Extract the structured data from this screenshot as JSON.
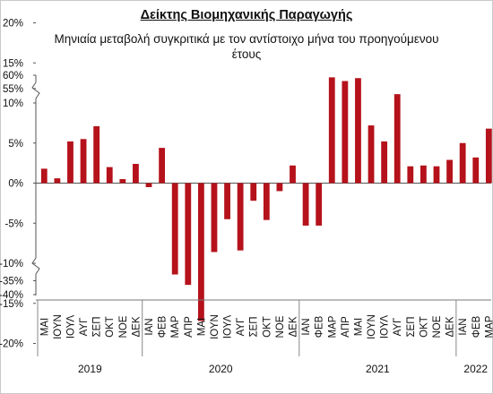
{
  "chart_data": {
    "type": "bar",
    "title": "Δείκτης Βιομηχανικής Παραγωγής",
    "subtitle": "Μηνιαία μεταβολή συγκριτικά με τον αντίστοιχο μήνα του προηγούμενου έτους",
    "ylim": [
      -40,
      60
    ],
    "y_break_regions": [
      [
        -35,
        -20
      ],
      [
        20,
        55
      ]
    ],
    "yticks": [
      "-40%",
      "-35%",
      "-20%",
      "-15%",
      "-10%",
      "-5%",
      "0%",
      "5%",
      "10%",
      "15%",
      "20%",
      "55%",
      "60%"
    ],
    "bar_color": "#b5121b",
    "categories": [
      "ΜΑΙ",
      "ΙΟΥΝ",
      "ΙΟΥΛ",
      "ΑΥΓ",
      "ΣΕΠ",
      "ΟΚΤ",
      "ΝΟΕ",
      "ΔΕΚ",
      "ΙΑΝ",
      "ΦΕΒ",
      "ΜΑΡ",
      "ΑΠΡ",
      "ΜΑΙ",
      "ΙΟΥΝ",
      "ΙΟΥΛ",
      "ΑΥΓ",
      "ΣΕΠ",
      "ΟΚΤ",
      "ΝΟΕ",
      "ΔΕΚ",
      "ΙΑΝ",
      "ΦΕΒ",
      "ΜΑΡ",
      "ΑΠΡ",
      "ΜΑΙ",
      "ΙΟΥΝ",
      "ΙΟΥΛ",
      "ΑΥΓ",
      "ΣΕΠ",
      "ΟΚΤ",
      "ΝΟΕ",
      "ΔΕΚ",
      "ΙΑΝ",
      "ΦΕΒ",
      "ΜΑΡ"
    ],
    "values": [
      1.8,
      0.6,
      5.2,
      5.5,
      7.1,
      2.0,
      0.5,
      2.4,
      -0.5,
      4.4,
      -11.4,
      -36.5,
      -17.2,
      -8.6,
      -4.5,
      -8.4,
      -2.2,
      -4.6,
      -1.0,
      2.2,
      -5.3,
      -5.3,
      13.2,
      57.8,
      13.1,
      7.2,
      5.2,
      11.1,
      2.1,
      2.2,
      2.1,
      2.9,
      5.0,
      3.2,
      6.8
    ],
    "years": [
      {
        "label": "2019",
        "start": 0,
        "end": 8
      },
      {
        "label": "2020",
        "start": 8,
        "end": 20
      },
      {
        "label": "2021",
        "start": 20,
        "end": 32
      },
      {
        "label": "2022",
        "start": 32,
        "end": 35
      }
    ]
  }
}
